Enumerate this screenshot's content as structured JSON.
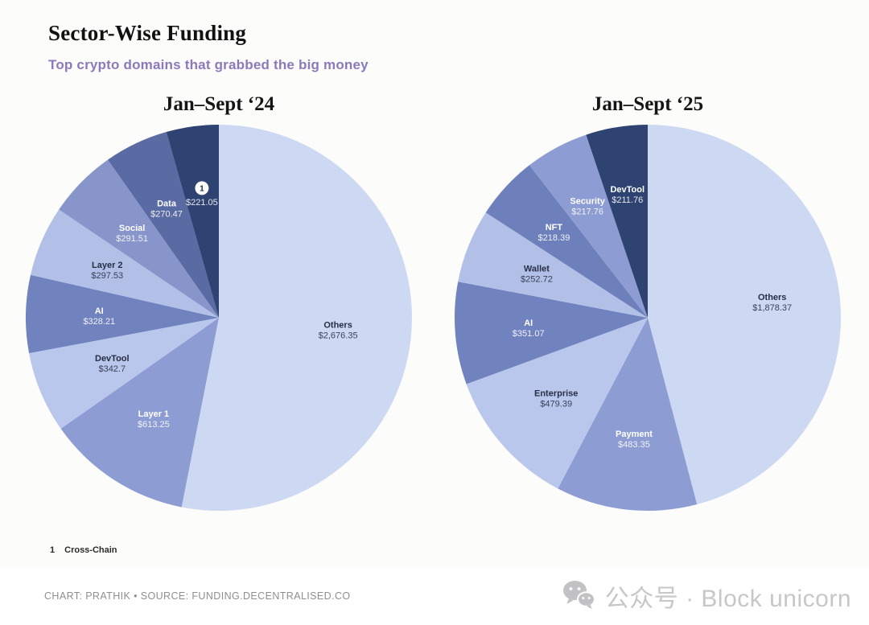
{
  "header": {
    "title": "Sector-Wise Funding",
    "subtitle": "Top crypto domains that grabbed the big money"
  },
  "chart_data": [
    {
      "type": "pie",
      "title": "Jan–Sept ‘24",
      "direction": "clockwise",
      "start_angle_deg": 0,
      "slices": [
        {
          "label": "Others",
          "value": 2676.35,
          "display_value": "$2,676.35",
          "color": "#cdd9f3",
          "text_color": "#262d45",
          "label_radius": 0.62
        },
        {
          "label": "Layer 1",
          "value": 613.25,
          "display_value": "$613.25",
          "color": "#8d9cd3",
          "text_color": "#ffffff",
          "label_radius": 0.62
        },
        {
          "label": "DevTool",
          "value": 342.7,
          "display_value": "$342.7",
          "color": "#bac7ec",
          "text_color": "#262d45",
          "label_radius": 0.6
        },
        {
          "label": "AI",
          "value": 328.21,
          "display_value": "$328.21",
          "color": "#7083bf",
          "text_color": "#ffffff",
          "label_radius": 0.62
        },
        {
          "label": "Layer 2",
          "value": 297.53,
          "display_value": "$297.53",
          "color": "#b2c0e8",
          "text_color": "#262d45",
          "label_radius": 0.63
        },
        {
          "label": "Social",
          "value": 291.51,
          "display_value": "$291.51",
          "color": "#8795cb",
          "text_color": "#ffffff",
          "label_radius": 0.63
        },
        {
          "label": "Data",
          "value": 270.47,
          "display_value": "$270.47",
          "color": "#5a6ba4",
          "text_color": "#ffffff",
          "label_radius": 0.63
        },
        {
          "label": "Cross-Chain",
          "badge": "1",
          "value": 221.05,
          "display_value": "$221.05",
          "color": "#2e4371",
          "text_color": "#ffffff",
          "label_radius": 0.64
        }
      ]
    },
    {
      "type": "pie",
      "title": "Jan–Sept ‘25",
      "direction": "clockwise",
      "start_angle_deg": 0,
      "slices": [
        {
          "label": "Others",
          "value": 1878.37,
          "display_value": "$1,878.37",
          "color": "#cdd9f3",
          "text_color": "#262d45",
          "label_radius": 0.65
        },
        {
          "label": "Payment",
          "value": 483.35,
          "display_value": "$483.35",
          "color": "#8d9cd3",
          "text_color": "#ffffff",
          "label_radius": 0.63
        },
        {
          "label": "Enterprise",
          "value": 479.39,
          "display_value": "$479.39",
          "color": "#bac7ec",
          "text_color": "#262d45",
          "label_radius": 0.63
        },
        {
          "label": "AI",
          "value": 351.07,
          "display_value": "$351.07",
          "color": "#7083bf",
          "text_color": "#ffffff",
          "label_radius": 0.62
        },
        {
          "label": "Wallet",
          "value": 252.72,
          "display_value": "$252.72",
          "color": "#b2c0e8",
          "text_color": "#262d45",
          "label_radius": 0.62
        },
        {
          "label": "NFT",
          "value": 218.39,
          "display_value": "$218.39",
          "color": "#6e80bc",
          "text_color": "#ffffff",
          "label_radius": 0.66
        },
        {
          "label": "Security",
          "value": 217.76,
          "display_value": "$217.76",
          "color": "#8d9cd2",
          "text_color": "#ffffff",
          "label_radius": 0.66
        },
        {
          "label": "DevTool",
          "value": 211.76,
          "display_value": "$211.76",
          "color": "#2e4371",
          "text_color": "#ffffff",
          "label_radius": 0.65
        }
      ]
    }
  ],
  "footnote": {
    "marker": "1",
    "label": "Cross-Chain"
  },
  "credit": "CHART: PRATHIK • SOURCE: FUNDING.DECENTRALISED.CO",
  "watermark": {
    "icon": "wechat-icon",
    "text": "公众号 · Block unicorn"
  }
}
